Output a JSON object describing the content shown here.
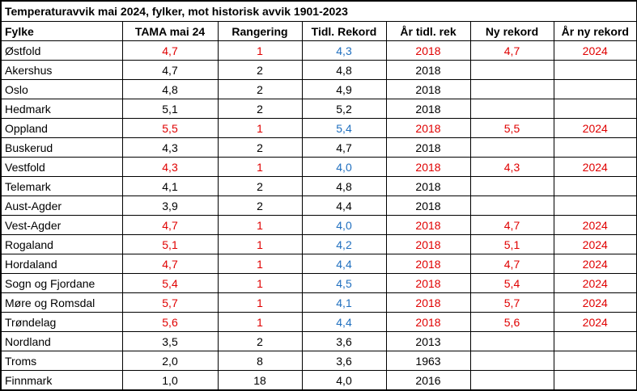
{
  "title": "Temperaturavvik mai 2024, fylker, mot historisk avvik 1901-2023",
  "columns": [
    "Fylke",
    "TAMA mai 24",
    "Rangering",
    "Tidl. Rekord",
    "År tidl. rek",
    "Ny rekord",
    "År ny rekord"
  ],
  "colors": {
    "record_red": "#e00000",
    "previous_record_blue": "#1f6fbf",
    "text": "#000000"
  },
  "rows": [
    {
      "fylke": "Østfold",
      "tama": "4,7",
      "rang": "1",
      "tidl": "4,3",
      "ar_tidl": "2018",
      "ny": "4,7",
      "ar_ny": "2024",
      "record": true
    },
    {
      "fylke": "Akershus",
      "tama": "4,7",
      "rang": "2",
      "tidl": "4,8",
      "ar_tidl": "2018",
      "ny": "",
      "ar_ny": "",
      "record": false
    },
    {
      "fylke": "Oslo",
      "tama": "4,8",
      "rang": "2",
      "tidl": "4,9",
      "ar_tidl": "2018",
      "ny": "",
      "ar_ny": "",
      "record": false
    },
    {
      "fylke": "Hedmark",
      "tama": "5,1",
      "rang": "2",
      "tidl": "5,2",
      "ar_tidl": "2018",
      "ny": "",
      "ar_ny": "",
      "record": false
    },
    {
      "fylke": "Oppland",
      "tama": "5,5",
      "rang": "1",
      "tidl": "5,4",
      "ar_tidl": "2018",
      "ny": "5,5",
      "ar_ny": "2024",
      "record": true
    },
    {
      "fylke": "Buskerud",
      "tama": "4,3",
      "rang": "2",
      "tidl": "4,7",
      "ar_tidl": "2018",
      "ny": "",
      "ar_ny": "",
      "record": false
    },
    {
      "fylke": "Vestfold",
      "tama": "4,3",
      "rang": "1",
      "tidl": "4,0",
      "ar_tidl": "2018",
      "ny": "4,3",
      "ar_ny": "2024",
      "record": true
    },
    {
      "fylke": "Telemark",
      "tama": "4,1",
      "rang": "2",
      "tidl": "4,8",
      "ar_tidl": "2018",
      "ny": "",
      "ar_ny": "",
      "record": false
    },
    {
      "fylke": "Aust-Agder",
      "tama": "3,9",
      "rang": "2",
      "tidl": "4,4",
      "ar_tidl": "2018",
      "ny": "",
      "ar_ny": "",
      "record": false
    },
    {
      "fylke": "Vest-Agder",
      "tama": "4,7",
      "rang": "1",
      "tidl": "4,0",
      "ar_tidl": "2018",
      "ny": "4,7",
      "ar_ny": "2024",
      "record": true
    },
    {
      "fylke": "Rogaland",
      "tama": "5,1",
      "rang": "1",
      "tidl": "4,2",
      "ar_tidl": "2018",
      "ny": "5,1",
      "ar_ny": "2024",
      "record": true
    },
    {
      "fylke": "Hordaland",
      "tama": "4,7",
      "rang": "1",
      "tidl": "4,4",
      "ar_tidl": "2018",
      "ny": "4,7",
      "ar_ny": "2024",
      "record": true
    },
    {
      "fylke": "Sogn og Fjordane",
      "tama": "5,4",
      "rang": "1",
      "tidl": "4,5",
      "ar_tidl": "2018",
      "ny": "5,4",
      "ar_ny": "2024",
      "record": true
    },
    {
      "fylke": "Møre og Romsdal",
      "tama": "5,7",
      "rang": "1",
      "tidl": "4,1",
      "ar_tidl": "2018",
      "ny": "5,7",
      "ar_ny": "2024",
      "record": true
    },
    {
      "fylke": "Trøndelag",
      "tama": "5,6",
      "rang": "1",
      "tidl": "4,4",
      "ar_tidl": "2018",
      "ny": "5,6",
      "ar_ny": "2024",
      "record": true
    },
    {
      "fylke": "Nordland",
      "tama": "3,5",
      "rang": "2",
      "tidl": "3,6",
      "ar_tidl": "2013",
      "ny": "",
      "ar_ny": "",
      "record": false
    },
    {
      "fylke": "Troms",
      "tama": "2,0",
      "rang": "8",
      "tidl": "3,6",
      "ar_tidl": "1963",
      "ny": "",
      "ar_ny": "",
      "record": false
    },
    {
      "fylke": "Finnmark",
      "tama": "1,0",
      "rang": "18",
      "tidl": "4,0",
      "ar_tidl": "2016",
      "ny": "",
      "ar_ny": "",
      "record": false
    }
  ]
}
